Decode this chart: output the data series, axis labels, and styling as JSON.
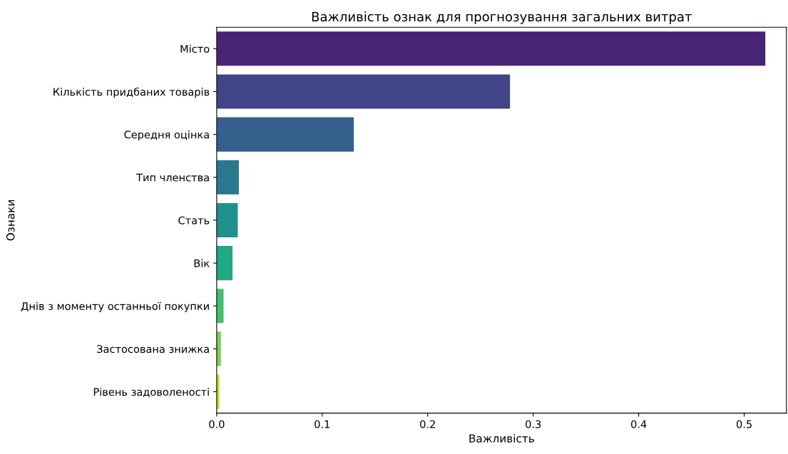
{
  "chart_data": {
    "type": "bar",
    "orientation": "horizontal",
    "title": "Важливість ознак для прогнозування загальних витрат",
    "xlabel": "Важливість",
    "ylabel": "Ознаки",
    "categories": [
      "Місто",
      "Кількість придбаних товарів",
      "Середня оцінка",
      "Тип членства",
      "Стать",
      "Вік",
      "Днів з моменту останньої покупки",
      "Застосована знижка",
      "Рівень задоволеності"
    ],
    "values": [
      0.52,
      0.278,
      0.13,
      0.021,
      0.02,
      0.015,
      0.0065,
      0.004,
      0.0025
    ],
    "colors": [
      "#482475",
      "#414487",
      "#355f8d",
      "#2a788e",
      "#21918c",
      "#22a884",
      "#44bf70",
      "#7ad151",
      "#bddf26"
    ],
    "xlim": [
      0,
      0.54
    ],
    "xticks": [
      {
        "value": 0,
        "label": "0.0"
      },
      0.1,
      0.2,
      0.3,
      0.4,
      0.5
    ],
    "grid": false,
    "legend": false
  }
}
